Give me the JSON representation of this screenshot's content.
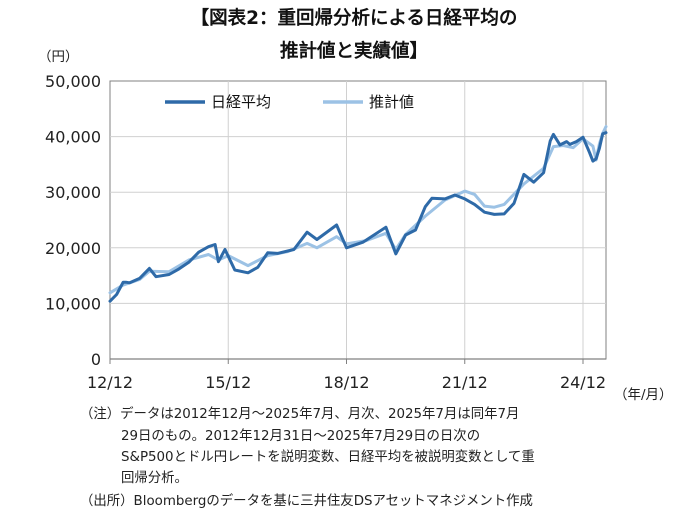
{
  "title_line1": "【図表2：重回帰分析による日経平均の",
  "title_line2": "推計値と実績値】",
  "y_unit": "（円）",
  "x_unit": "（年/月）",
  "notes": [
    "（注）データは2012年12月～2025年7月、月次、2025年7月は同年7月",
    "29日のもの。2012年12月31日～2025年7月29日の日次の",
    "S&P500とドル円レートを説明変数、日経平均を被説明変数として重",
    "回帰分析。",
    "（出所）Bloombergのデータを基に三井住友DSアセットマネジメント作成"
  ],
  "colors": {
    "actual": "#2e6aa8",
    "estimate": "#9cc2e5",
    "grid": "#d0d0d0",
    "axis": "#808080"
  },
  "chart_data": {
    "type": "line",
    "title": "【図表2：重回帰分析による日経平均の推計値と実績値】",
    "ylabel": "（円）",
    "xlabel": "（年/月）",
    "ylim": [
      0,
      50000
    ],
    "yticks": [
      0,
      10000,
      20000,
      30000,
      40000,
      50000
    ],
    "ytick_labels": [
      "0",
      "10,000",
      "20,000",
      "30,000",
      "40,000",
      "50,000"
    ],
    "xlim": [
      "2012-12",
      "2025-07"
    ],
    "xticks": [
      "2012-12",
      "2015-12",
      "2018-12",
      "2021-12",
      "2024-12"
    ],
    "xtick_labels": [
      "12/12",
      "15/12",
      "18/12",
      "21/12",
      "24/12"
    ],
    "grid": true,
    "legend_position": "top-left",
    "series": [
      {
        "name": "日経平均",
        "color": "#2e6aa8",
        "points": [
          [
            "2012-12",
            10400
          ],
          [
            "2013-02",
            11600
          ],
          [
            "2013-04",
            13800
          ],
          [
            "2013-05",
            13800
          ],
          [
            "2013-06",
            13700
          ],
          [
            "2013-09",
            14500
          ],
          [
            "2013-12",
            16300
          ],
          [
            "2014-02",
            14800
          ],
          [
            "2014-06",
            15200
          ],
          [
            "2014-09",
            16200
          ],
          [
            "2014-12",
            17400
          ],
          [
            "2015-03",
            19200
          ],
          [
            "2015-06",
            20200
          ],
          [
            "2015-08",
            20600
          ],
          [
            "2015-09",
            17500
          ],
          [
            "2015-11",
            19700
          ],
          [
            "2016-02",
            16000
          ],
          [
            "2016-06",
            15500
          ],
          [
            "2016-09",
            16500
          ],
          [
            "2016-12",
            19100
          ],
          [
            "2017-03",
            19000
          ],
          [
            "2017-08",
            19700
          ],
          [
            "2017-12",
            22800
          ],
          [
            "2018-03",
            21500
          ],
          [
            "2018-09",
            24100
          ],
          [
            "2018-12",
            20000
          ],
          [
            "2019-05",
            21000
          ],
          [
            "2019-12",
            23700
          ],
          [
            "2020-03",
            18900
          ],
          [
            "2020-06",
            22300
          ],
          [
            "2020-09",
            23200
          ],
          [
            "2020-12",
            27400
          ],
          [
            "2021-02",
            28900
          ],
          [
            "2021-06",
            28800
          ],
          [
            "2021-09",
            29500
          ],
          [
            "2021-12",
            28800
          ],
          [
            "2022-03",
            27800
          ],
          [
            "2022-06",
            26400
          ],
          [
            "2022-09",
            26000
          ],
          [
            "2022-12",
            26100
          ],
          [
            "2023-03",
            28000
          ],
          [
            "2023-06",
            33200
          ],
          [
            "2023-09",
            31800
          ],
          [
            "2023-12",
            33500
          ],
          [
            "2024-02",
            39200
          ],
          [
            "2024-03",
            40400
          ],
          [
            "2024-05",
            38500
          ],
          [
            "2024-07",
            39100
          ],
          [
            "2024-08",
            38600
          ],
          [
            "2024-10",
            39100
          ],
          [
            "2024-12",
            39900
          ],
          [
            "2025-02",
            37100
          ],
          [
            "2025-03",
            35600
          ],
          [
            "2025-04",
            36000
          ],
          [
            "2025-05",
            37900
          ],
          [
            "2025-06",
            40500
          ],
          [
            "2025-07",
            40700
          ]
        ]
      },
      {
        "name": "推計値",
        "color": "#9cc2e5",
        "points": [
          [
            "2012-12",
            11900
          ],
          [
            "2013-04",
            13300
          ],
          [
            "2013-09",
            14300
          ],
          [
            "2013-12",
            15800
          ],
          [
            "2014-06",
            15700
          ],
          [
            "2014-12",
            17800
          ],
          [
            "2015-06",
            18800
          ],
          [
            "2015-09",
            17800
          ],
          [
            "2015-12",
            18600
          ],
          [
            "2016-06",
            16800
          ],
          [
            "2016-12",
            18600
          ],
          [
            "2017-06",
            19300
          ],
          [
            "2017-12",
            20800
          ],
          [
            "2018-03",
            20000
          ],
          [
            "2018-09",
            22000
          ],
          [
            "2018-12",
            20700
          ],
          [
            "2019-06",
            21300
          ],
          [
            "2019-12",
            22600
          ],
          [
            "2020-03",
            19700
          ],
          [
            "2020-06",
            22400
          ],
          [
            "2020-12",
            25700
          ],
          [
            "2021-06",
            28600
          ],
          [
            "2021-12",
            30200
          ],
          [
            "2022-03",
            29600
          ],
          [
            "2022-06",
            27500
          ],
          [
            "2022-09",
            27300
          ],
          [
            "2022-12",
            27800
          ],
          [
            "2023-06",
            31500
          ],
          [
            "2023-12",
            34300
          ],
          [
            "2024-03",
            38200
          ],
          [
            "2024-06",
            38400
          ],
          [
            "2024-09",
            38000
          ],
          [
            "2024-12",
            39600
          ],
          [
            "2025-03",
            38300
          ],
          [
            "2025-04",
            35800
          ],
          [
            "2025-05",
            38700
          ],
          [
            "2025-06",
            40600
          ],
          [
            "2025-07",
            41800
          ]
        ]
      }
    ]
  }
}
